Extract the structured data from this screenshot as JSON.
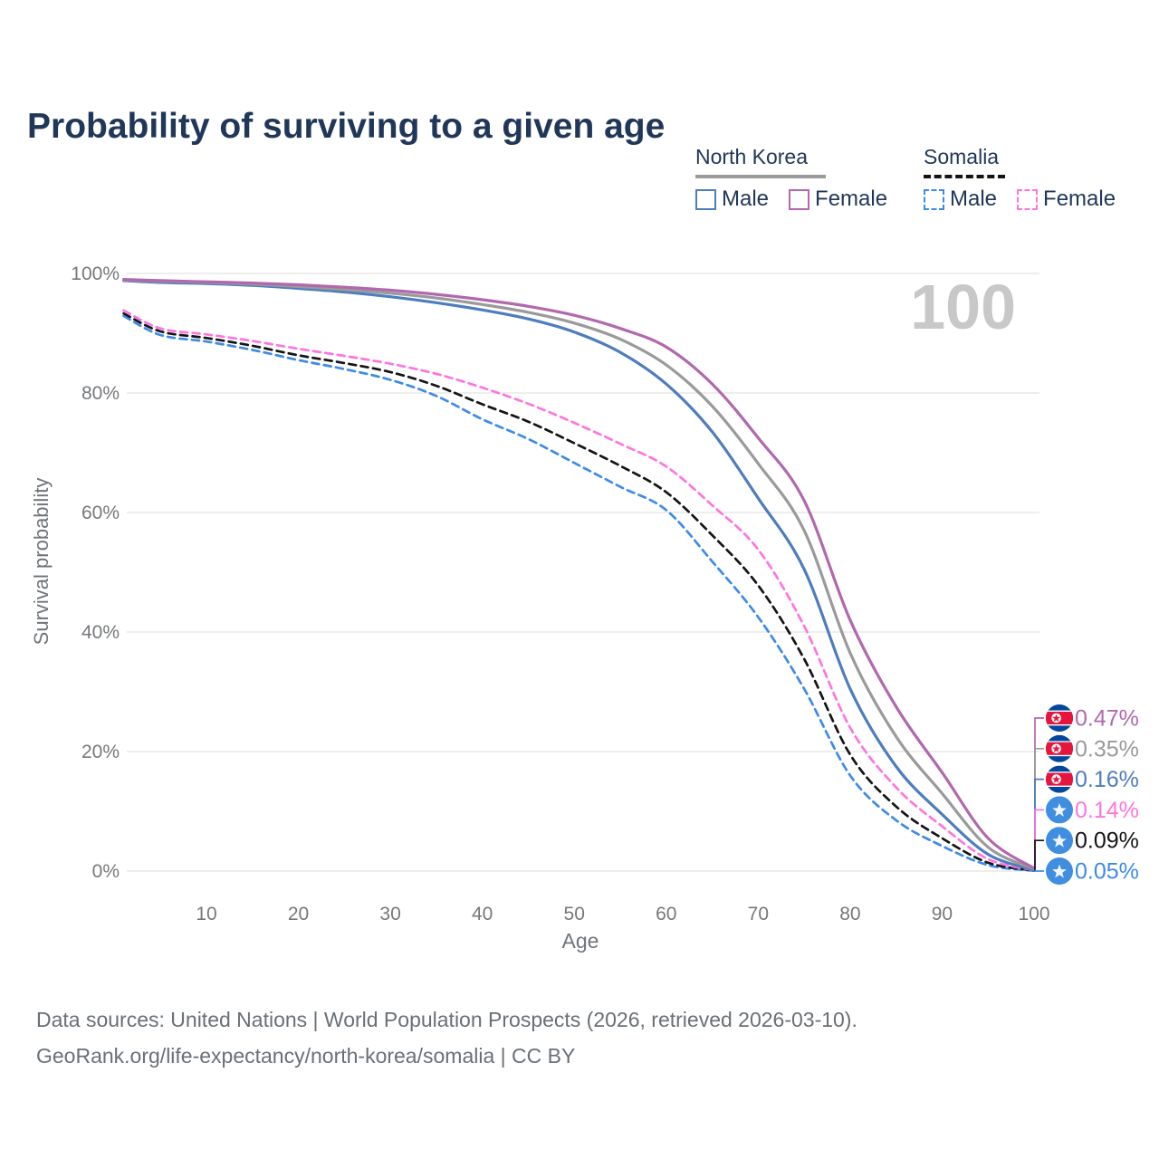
{
  "title": "Probability of surviving to a given age",
  "watermark": "100",
  "legend": {
    "groups": [
      {
        "label": "North Korea",
        "line_style": "solid",
        "underline_color": "#9b9b9b",
        "items": [
          {
            "label": "Male",
            "color": "#4d7dbf"
          },
          {
            "label": "Female",
            "color": "#b267ae"
          }
        ]
      },
      {
        "label": "Somalia",
        "line_style": "dashed",
        "underline_color": "#141414",
        "items": [
          {
            "label": "Male",
            "color": "#3d8be8"
          },
          {
            "label": "Female",
            "color": "#ff74e0"
          }
        ]
      }
    ]
  },
  "axes": {
    "y_label": "Survival probability",
    "x_label": "Age",
    "y_ticks": [
      "100%",
      "80%",
      "60%",
      "40%",
      "20%",
      "0%"
    ],
    "y_tick_values": [
      100,
      80,
      60,
      40,
      20,
      0
    ],
    "x_ticks": [
      10,
      20,
      30,
      40,
      50,
      60,
      70,
      80,
      90,
      100
    ]
  },
  "end_labels": [
    {
      "flag": "north-korea",
      "value": "0.47%",
      "color": "#b267ae"
    },
    {
      "flag": "north-korea",
      "value": "0.35%",
      "color": "#9a9a9a"
    },
    {
      "flag": "north-korea",
      "value": "0.16%",
      "color": "#4d7dbf"
    },
    {
      "flag": "somalia",
      "value": "0.14%",
      "color": "#ff74e0"
    },
    {
      "flag": "somalia",
      "value": "0.09%",
      "color": "#141414"
    },
    {
      "flag": "somalia",
      "value": "0.05%",
      "color": "#3d8be8"
    }
  ],
  "footer": {
    "line1": "Data sources: United Nations | World Population Prospects (2026, retrieved 2026-03-10).",
    "line2": "GeoRank.org/life-expectancy/north-korea/somalia | CC BY"
  },
  "chart_data": {
    "type": "line",
    "title": "Probability of surviving to a given age",
    "xlabel": "Age",
    "ylabel": "Survival probability",
    "xlim": [
      1,
      100
    ],
    "ylim": [
      0,
      100
    ],
    "grid": true,
    "legend_position": "top-right",
    "x": [
      1,
      5,
      10,
      15,
      20,
      25,
      30,
      35,
      40,
      45,
      50,
      55,
      60,
      65,
      70,
      75,
      80,
      85,
      90,
      95,
      100
    ],
    "series": [
      {
        "name": "Somalia Male",
        "country": "Somalia",
        "sex": "male",
        "color": "#3d8be8",
        "dash": true,
        "values": [
          92.9,
          89.7,
          88.6,
          87.2,
          85.5,
          84.0,
          82.2,
          79.5,
          75.6,
          72.3,
          68.3,
          64.3,
          60.4,
          51.8,
          42.5,
          30.5,
          16.0,
          8.5,
          4.2,
          1.0,
          0.05
        ]
      },
      {
        "name": "Somalia (both sexes)",
        "country": "Somalia",
        "sex": "all",
        "color": "#141414",
        "dash": true,
        "values": [
          93.3,
          90.3,
          89.2,
          87.9,
          86.3,
          85.0,
          83.5,
          81.2,
          78.1,
          75.2,
          71.6,
          67.8,
          63.4,
          56.2,
          47.8,
          35.5,
          19.5,
          10.8,
          5.5,
          1.4,
          0.09
        ]
      },
      {
        "name": "Somalia Female",
        "country": "Somalia",
        "sex": "female",
        "color": "#ff74e0",
        "dash": true,
        "values": [
          93.8,
          90.8,
          89.8,
          88.7,
          87.4,
          86.2,
          84.9,
          83.2,
          80.9,
          78.2,
          75.0,
          71.5,
          67.7,
          61.2,
          53.8,
          41.0,
          24.0,
          14.0,
          7.5,
          2.0,
          0.14
        ]
      },
      {
        "name": "North Korea Male",
        "country": "North Korea",
        "sex": "male",
        "color": "#4d7dbf",
        "dash": false,
        "values": [
          98.8,
          98.5,
          98.3,
          98.0,
          97.5,
          96.9,
          96.1,
          95.1,
          93.9,
          92.4,
          90.2,
          86.8,
          81.5,
          73.5,
          62.4,
          50.5,
          30.5,
          17.5,
          9.5,
          2.8,
          0.16
        ]
      },
      {
        "name": "North Korea (both sexes)",
        "country": "North Korea",
        "sex": "all",
        "color": "#9a9a9a",
        "dash": false,
        "values": [
          98.9,
          98.7,
          98.5,
          98.2,
          97.8,
          97.3,
          96.7,
          95.9,
          94.8,
          93.5,
          91.7,
          89.0,
          84.7,
          77.8,
          68.2,
          57.0,
          36.5,
          22.5,
          13.0,
          4.0,
          0.35
        ]
      },
      {
        "name": "North Korea Female",
        "country": "North Korea",
        "sex": "female",
        "color": "#b267ae",
        "dash": false,
        "values": [
          99.0,
          98.8,
          98.6,
          98.4,
          98.1,
          97.7,
          97.2,
          96.5,
          95.6,
          94.5,
          93.0,
          90.8,
          87.7,
          81.5,
          72.5,
          62.0,
          42.0,
          27.5,
          16.5,
          5.5,
          0.47
        ]
      }
    ]
  }
}
